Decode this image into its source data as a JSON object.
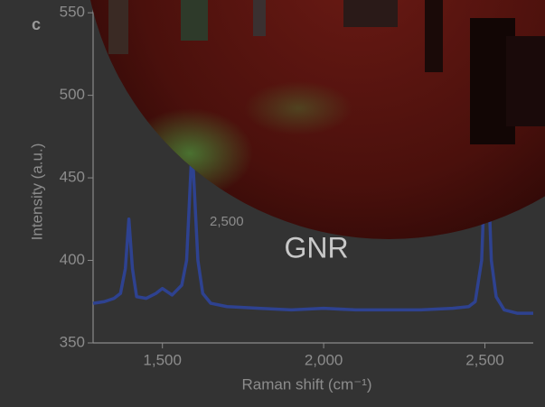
{
  "chart_data": {
    "type": "line",
    "panel_label": "c",
    "xlabel": "Raman shift (cm⁻¹)",
    "ylabel": "Intensity (a.u.)",
    "annotation": "GNR",
    "inset_label": "2,500",
    "x": [
      1285,
      1320,
      1350,
      1370,
      1385,
      1396,
      1407,
      1420,
      1450,
      1480,
      1500,
      1530,
      1560,
      1575,
      1592,
      1610,
      1625,
      1650,
      1700,
      1800,
      1900,
      2000,
      2100,
      2200,
      2300,
      2400,
      2450,
      2470,
      2490,
      2505,
      2520,
      2535,
      2560,
      2600,
      2650
    ],
    "series": [
      {
        "color": "#2e4290",
        "values": [
          374,
          375,
          377,
          380,
          395,
          425,
          395,
          378,
          377,
          380,
          383,
          379,
          385,
          400,
          470,
          400,
          380,
          374,
          372,
          371,
          370,
          371,
          370,
          370,
          370,
          371,
          372,
          375,
          400,
          480,
          400,
          378,
          370,
          368,
          368
        ]
      }
    ],
    "xlim": [
      1285,
      2650
    ],
    "ylim": [
      350,
      555
    ],
    "xticks": [
      {
        "value": 1500,
        "label": "1,500"
      },
      {
        "value": 2000,
        "label": "2,000"
      },
      {
        "value": 2500,
        "label": "2,500"
      }
    ],
    "yticks": [
      350,
      400,
      450,
      500,
      550
    ]
  }
}
